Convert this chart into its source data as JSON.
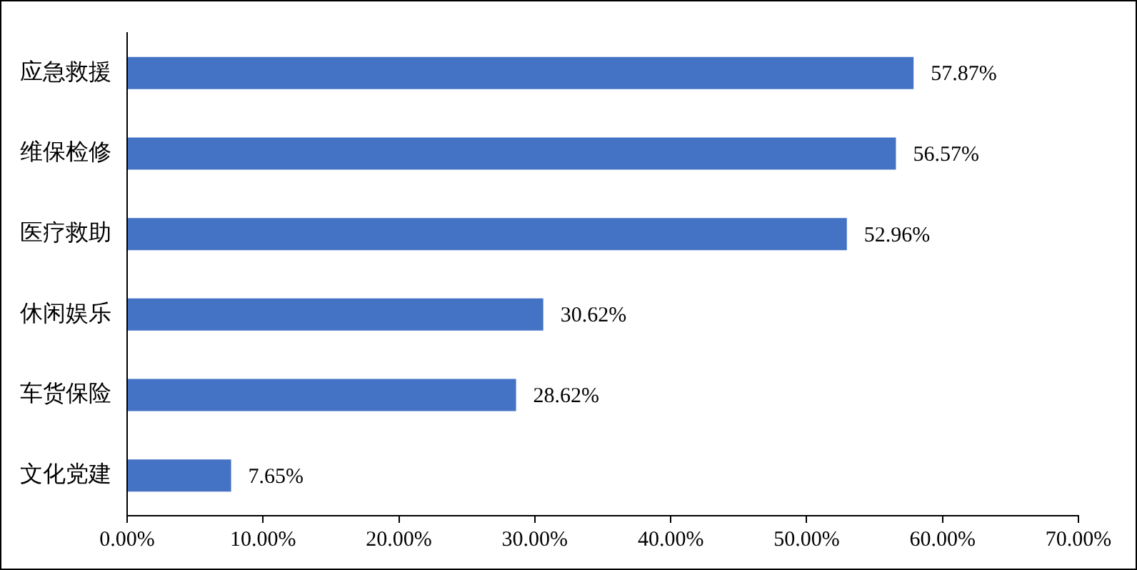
{
  "chart_data": {
    "type": "bar",
    "orientation": "horizontal",
    "categories": [
      "应急救援",
      "维保检修",
      "医疗救助",
      "休闲娱乐",
      "车货保险",
      "文化党建"
    ],
    "values": [
      57.87,
      56.57,
      52.96,
      30.62,
      28.62,
      7.65
    ],
    "value_labels": [
      "57.87%",
      "56.57%",
      "52.96%",
      "30.62%",
      "28.62%",
      "7.65%"
    ],
    "color": "#4472c4",
    "xlim": [
      0,
      70
    ],
    "xticks": [
      {
        "value": 0,
        "label": "0.00%"
      },
      {
        "value": 10,
        "label": "10.00%"
      },
      {
        "value": 20,
        "label": "20.00%"
      },
      {
        "value": 30,
        "label": "30.00%"
      },
      {
        "value": 40,
        "label": "40.00%"
      },
      {
        "value": 50,
        "label": "50.00%"
      },
      {
        "value": 60,
        "label": "60.00%"
      },
      {
        "value": 70,
        "label": "70.00%"
      }
    ],
    "legend": false
  }
}
